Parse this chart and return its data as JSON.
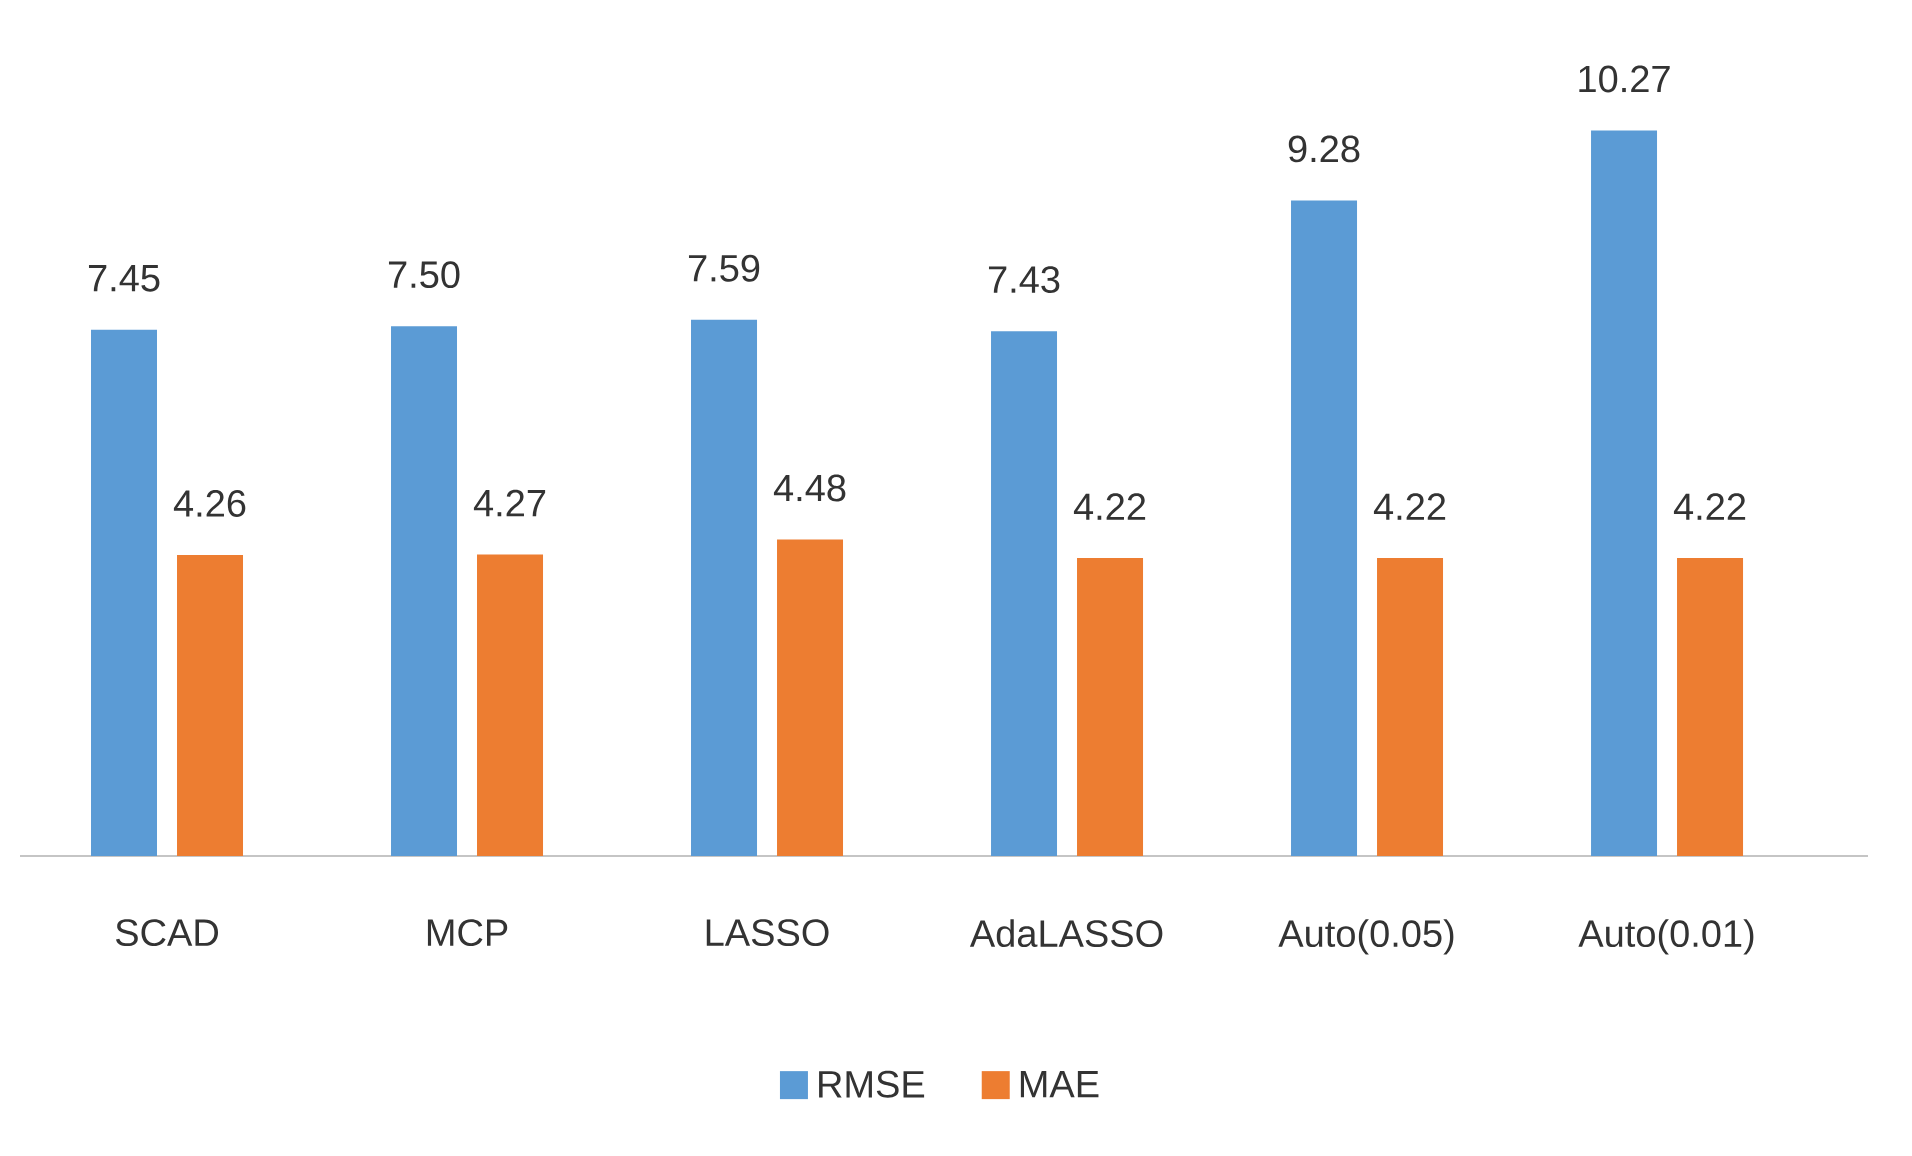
{
  "chart_data": {
    "type": "bar",
    "categories": [
      "SCAD",
      "MCP",
      "LASSO",
      "AdaLASSO",
      "Auto(0.05)",
      "Auto(0.01)"
    ],
    "series": [
      {
        "name": "RMSE",
        "color": "#5b9bd5",
        "values": [
          7.45,
          7.5,
          7.59,
          7.43,
          9.28,
          10.27
        ],
        "value_labels": [
          "7.45",
          "7.50",
          "7.59",
          "7.43",
          "9.28",
          "10.27"
        ]
      },
      {
        "name": "MAE",
        "color": "#ed7d31",
        "values": [
          4.26,
          4.27,
          4.48,
          4.22,
          4.22,
          4.22
        ],
        "value_labels": [
          "4.26",
          "4.27",
          "4.48",
          "4.22",
          "4.22",
          "4.22"
        ]
      }
    ],
    "data_labels": true,
    "legend": "bottom"
  }
}
